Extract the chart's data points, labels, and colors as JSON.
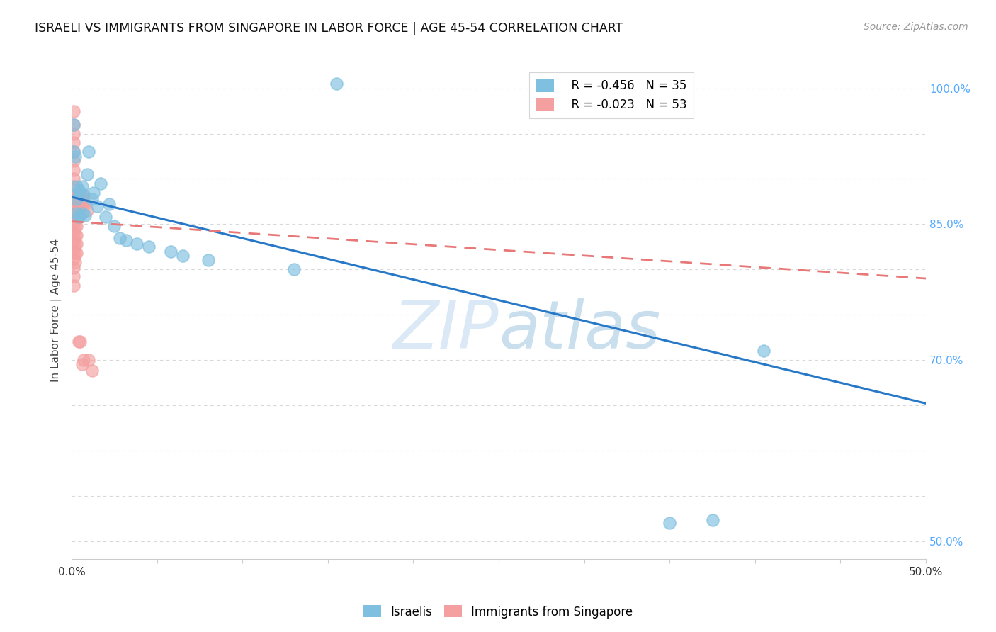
{
  "title": "ISRAELI VS IMMIGRANTS FROM SINGAPORE IN LABOR FORCE | AGE 45-54 CORRELATION CHART",
  "source": "Source: ZipAtlas.com",
  "ylabel": "In Labor Force | Age 45-54",
  "xlim": [
    0.0,
    0.5
  ],
  "ylim": [
    0.48,
    1.03
  ],
  "yticks_right": [
    0.5,
    0.55,
    0.6,
    0.65,
    0.7,
    0.75,
    0.8,
    0.85,
    0.9,
    0.95,
    1.0
  ],
  "yticklabels_right": [
    "50.0%",
    "",
    "",
    "",
    "70.0%",
    "",
    "",
    "85.0%",
    "",
    "",
    "100.0%"
  ],
  "israeli_color": "#7fbfdf",
  "singapore_color": "#f4a0a0",
  "israeli_line_color": "#2878c8",
  "singapore_line_color": "#e87878",
  "israeli_r": -0.456,
  "israeli_n": 35,
  "singapore_r": -0.023,
  "singapore_n": 53,
  "watermark": "ZIPatlas",
  "background_color": "#ffffff",
  "grid_color": "#d8d8d8",
  "israeli_x": [
    0.001,
    0.001,
    0.002,
    0.003,
    0.003,
    0.003,
    0.004,
    0.004,
    0.005,
    0.005,
    0.006,
    0.006,
    0.007,
    0.008,
    0.009,
    0.01,
    0.012,
    0.013,
    0.015,
    0.017,
    0.02,
    0.022,
    0.025,
    0.028,
    0.032,
    0.038,
    0.045,
    0.058,
    0.065,
    0.08,
    0.13,
    0.155,
    0.35,
    0.375,
    0.405
  ],
  "israeli_y": [
    0.96,
    0.93,
    0.925,
    0.892,
    0.878,
    0.862,
    0.888,
    0.858,
    0.885,
    0.86,
    0.892,
    0.862,
    0.882,
    0.86,
    0.905,
    0.93,
    0.878,
    0.885,
    0.87,
    0.895,
    0.858,
    0.872,
    0.848,
    0.835,
    0.832,
    0.828,
    0.825,
    0.82,
    0.815,
    0.81,
    0.8,
    1.005,
    0.52,
    0.523,
    0.71
  ],
  "singapore_x": [
    0.001,
    0.001,
    0.001,
    0.001,
    0.001,
    0.001,
    0.001,
    0.001,
    0.001,
    0.001,
    0.001,
    0.001,
    0.001,
    0.001,
    0.001,
    0.001,
    0.001,
    0.001,
    0.001,
    0.001,
    0.002,
    0.002,
    0.002,
    0.002,
    0.002,
    0.002,
    0.002,
    0.002,
    0.002,
    0.002,
    0.003,
    0.003,
    0.003,
    0.003,
    0.003,
    0.003,
    0.003,
    0.004,
    0.004,
    0.004,
    0.004,
    0.005,
    0.005,
    0.005,
    0.006,
    0.006,
    0.006,
    0.007,
    0.007,
    0.008,
    0.009,
    0.01,
    0.012
  ],
  "singapore_y": [
    0.975,
    0.96,
    0.95,
    0.94,
    0.93,
    0.92,
    0.91,
    0.9,
    0.892,
    0.882,
    0.872,
    0.862,
    0.852,
    0.842,
    0.832,
    0.822,
    0.812,
    0.802,
    0.792,
    0.782,
    0.878,
    0.868,
    0.858,
    0.848,
    0.838,
    0.828,
    0.818,
    0.808,
    0.878,
    0.862,
    0.878,
    0.868,
    0.858,
    0.848,
    0.838,
    0.828,
    0.818,
    0.882,
    0.872,
    0.862,
    0.72,
    0.882,
    0.872,
    0.72,
    0.882,
    0.872,
    0.695,
    0.878,
    0.7,
    0.872,
    0.865,
    0.7,
    0.688
  ],
  "blue_trendline_x": [
    0.0,
    0.5
  ],
  "blue_trendline_y": [
    0.88,
    0.652
  ],
  "pink_trendline_x": [
    0.0,
    0.5
  ],
  "pink_trendline_y": [
    0.853,
    0.79
  ]
}
